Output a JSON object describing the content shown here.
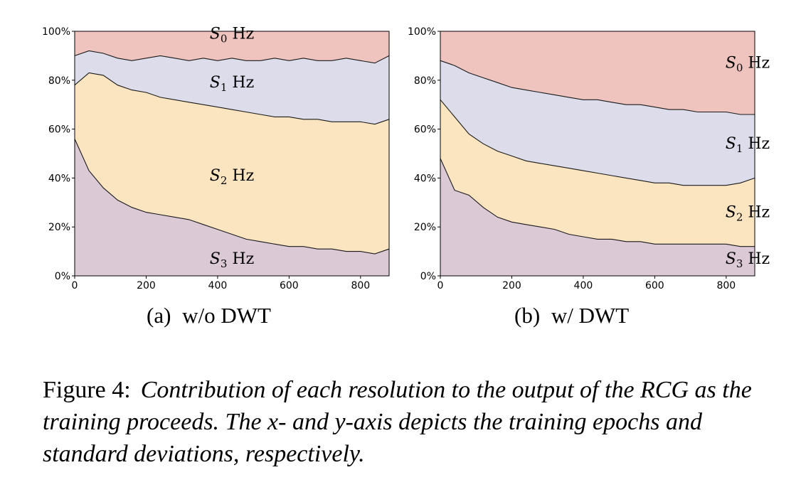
{
  "colors": {
    "S0": "#efc4bf",
    "S1": "#dcdcea",
    "S2": "#fbe5c1",
    "S3": "#dcc9d6",
    "line": "#1a1a1a"
  },
  "chart_data": [
    {
      "type": "area",
      "stacked": "percent",
      "subcaption_id": "(a)",
      "subcaption_text": "w/o DWT",
      "xlim": [
        0,
        880
      ],
      "ylim": [
        0,
        100
      ],
      "xticks": [
        "0",
        "200",
        "400",
        "600",
        "800"
      ],
      "xtick_values": [
        0,
        200,
        400,
        600,
        800
      ],
      "yticks": [
        "0%",
        "20%",
        "40%",
        "60%",
        "80%",
        "100%"
      ],
      "ytick_values": [
        0,
        20,
        40,
        60,
        80,
        100
      ],
      "x": [
        0,
        40,
        80,
        120,
        160,
        200,
        240,
        280,
        320,
        360,
        400,
        440,
        480,
        520,
        560,
        600,
        640,
        680,
        720,
        760,
        800,
        840,
        880
      ],
      "boundaries": [
        {
          "name": "S3/S2",
          "values": [
            56,
            43,
            36,
            31,
            28,
            26,
            25,
            24,
            23,
            21,
            19,
            17,
            15,
            14,
            13,
            12,
            12,
            11,
            11,
            10,
            10,
            9,
            11
          ]
        },
        {
          "name": "S2/S1",
          "values": [
            78,
            83,
            82,
            78,
            76,
            75,
            73,
            72,
            71,
            70,
            69,
            68,
            67,
            66,
            65,
            65,
            64,
            64,
            63,
            63,
            63,
            62,
            64
          ]
        },
        {
          "name": "S1/S0",
          "values": [
            90,
            92,
            91,
            89,
            88,
            89,
            90,
            89,
            88,
            89,
            88,
            89,
            88,
            88,
            89,
            88,
            89,
            88,
            88,
            89,
            88,
            87,
            90
          ]
        }
      ],
      "series": [
        {
          "name": "S0",
          "label_sub": "0",
          "label_x": 440,
          "label_y": 97
        },
        {
          "name": "S1",
          "label_sub": "1",
          "label_x": 440,
          "label_y": 77
        },
        {
          "name": "S2",
          "label_sub": "2",
          "label_x": 440,
          "label_y": 39
        },
        {
          "name": "S3",
          "label_sub": "3",
          "label_x": 440,
          "label_y": 5
        }
      ],
      "unit": "Hz"
    },
    {
      "type": "area",
      "stacked": "percent",
      "subcaption_id": "(b)",
      "subcaption_text": "w/ DWT",
      "xlim": [
        0,
        880
      ],
      "ylim": [
        0,
        100
      ],
      "xticks": [
        "0",
        "200",
        "400",
        "600",
        "800"
      ],
      "xtick_values": [
        0,
        200,
        400,
        600,
        800
      ],
      "yticks": [
        "0%",
        "20%",
        "40%",
        "60%",
        "80%",
        "100%"
      ],
      "ytick_values": [
        0,
        20,
        40,
        60,
        80,
        100
      ],
      "x": [
        0,
        40,
        80,
        120,
        160,
        200,
        240,
        280,
        320,
        360,
        400,
        440,
        480,
        520,
        560,
        600,
        640,
        680,
        720,
        760,
        800,
        840,
        880
      ],
      "boundaries": [
        {
          "name": "S3/S2",
          "values": [
            48,
            35,
            33,
            28,
            24,
            22,
            21,
            20,
            19,
            17,
            16,
            15,
            15,
            14,
            14,
            13,
            13,
            13,
            13,
            13,
            13,
            12,
            12
          ]
        },
        {
          "name": "S2/S1",
          "values": [
            72,
            65,
            58,
            54,
            51,
            49,
            47,
            46,
            45,
            44,
            43,
            42,
            41,
            40,
            39,
            38,
            38,
            37,
            37,
            37,
            37,
            38,
            40
          ]
        },
        {
          "name": "S1/S0",
          "values": [
            88,
            86,
            83,
            81,
            79,
            77,
            76,
            75,
            74,
            73,
            72,
            72,
            71,
            70,
            70,
            69,
            68,
            68,
            67,
            67,
            67,
            66,
            66
          ]
        }
      ],
      "series": [
        {
          "name": "S0",
          "label_sub": "0",
          "label_x": 860,
          "label_y": 85
        },
        {
          "name": "S1",
          "label_sub": "1",
          "label_x": 860,
          "label_y": 52
        },
        {
          "name": "S2",
          "label_sub": "2",
          "label_x": 860,
          "label_y": 24
        },
        {
          "name": "S3",
          "label_sub": "3",
          "label_x": 860,
          "label_y": 5
        }
      ],
      "unit": "Hz"
    }
  ],
  "caption": {
    "lead": "Figure 4:",
    "body": "Contribution of each resolution to the output of the RCG as the training proceeds. The x- and y-axis depicts the training epochs and standard deviations, respectively."
  }
}
